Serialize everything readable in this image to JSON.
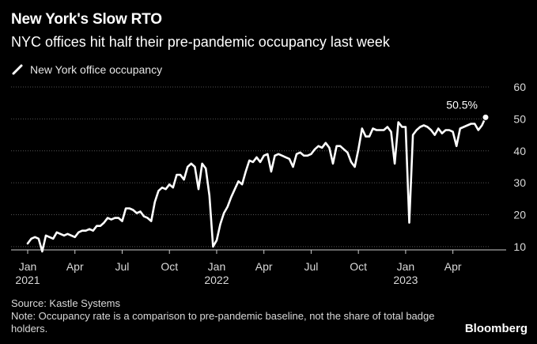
{
  "title": "New York's Slow RTO",
  "subtitle": "NYC offices hit half their pre-pandemic occupancy last week",
  "source": "Source: Kastle Systems",
  "note": "Note: Occupancy rate is a comparison to pre-pandemic baseline, not the share of total badge holders.",
  "brand": "Bloomberg",
  "colors": {
    "background": "#000000",
    "line": "#ffffff",
    "gridline": "#555555",
    "text": "#d9d9d9"
  },
  "chart_data": {
    "type": "line",
    "title": "New York's Slow RTO",
    "subtitle": "NYC offices hit half their pre-pandemic occupancy last week",
    "xlabel": "",
    "ylabel": "",
    "ylim": [
      8,
      61
    ],
    "yticks": [
      10,
      20,
      30,
      40,
      50,
      60
    ],
    "x_ticks": [
      {
        "date": "2021-01-04",
        "label": "Jan",
        "year": "2021"
      },
      {
        "date": "2021-04-05",
        "label": "Apr",
        "year": ""
      },
      {
        "date": "2021-07-05",
        "label": "Jul",
        "year": ""
      },
      {
        "date": "2021-10-04",
        "label": "Oct",
        "year": ""
      },
      {
        "date": "2022-01-03",
        "label": "Jan",
        "year": "2022"
      },
      {
        "date": "2022-04-04",
        "label": "Apr",
        "year": ""
      },
      {
        "date": "2022-07-04",
        "label": "Jul",
        "year": ""
      },
      {
        "date": "2022-10-03",
        "label": "Oct",
        "year": ""
      },
      {
        "date": "2023-01-02",
        "label": "Jan",
        "year": "2023"
      },
      {
        "date": "2023-04-03",
        "label": "Apr",
        "year": ""
      }
    ],
    "grid": true,
    "legend": "top-left",
    "annotation": {
      "date": "2023-06-05",
      "text": "50.5%"
    },
    "series": [
      {
        "name": "New York office occupancy",
        "points": [
          [
            "2021-01-04",
            11.0
          ],
          [
            "2021-01-11",
            12.5
          ],
          [
            "2021-01-18",
            13.0
          ],
          [
            "2021-01-25",
            12.5
          ],
          [
            "2021-02-01",
            8.5
          ],
          [
            "2021-02-08",
            13.5
          ],
          [
            "2021-02-15",
            13.0
          ],
          [
            "2021-02-22",
            12.5
          ],
          [
            "2021-03-01",
            14.5
          ],
          [
            "2021-03-08",
            14.0
          ],
          [
            "2021-03-15",
            13.5
          ],
          [
            "2021-03-22",
            14.0
          ],
          [
            "2021-03-29",
            13.5
          ],
          [
            "2021-04-05",
            13.0
          ],
          [
            "2021-04-12",
            14.5
          ],
          [
            "2021-04-19",
            15.0
          ],
          [
            "2021-04-26",
            15.0
          ],
          [
            "2021-05-03",
            15.5
          ],
          [
            "2021-05-10",
            15.0
          ],
          [
            "2021-05-17",
            16.5
          ],
          [
            "2021-05-24",
            16.5
          ],
          [
            "2021-05-31",
            17.5
          ],
          [
            "2021-06-07",
            19.0
          ],
          [
            "2021-06-14",
            18.5
          ],
          [
            "2021-06-21",
            19.0
          ],
          [
            "2021-06-28",
            19.0
          ],
          [
            "2021-07-05",
            18.0
          ],
          [
            "2021-07-12",
            22.0
          ],
          [
            "2021-07-19",
            22.0
          ],
          [
            "2021-07-26",
            21.5
          ],
          [
            "2021-08-02",
            20.5
          ],
          [
            "2021-08-09",
            21.0
          ],
          [
            "2021-08-16",
            19.5
          ],
          [
            "2021-08-23",
            19.0
          ],
          [
            "2021-08-30",
            18.0
          ],
          [
            "2021-09-06",
            24.0
          ],
          [
            "2021-09-13",
            27.5
          ],
          [
            "2021-09-20",
            28.5
          ],
          [
            "2021-09-27",
            28.0
          ],
          [
            "2021-10-04",
            29.5
          ],
          [
            "2021-10-11",
            28.5
          ],
          [
            "2021-10-18",
            32.5
          ],
          [
            "2021-10-25",
            32.5
          ],
          [
            "2021-11-01",
            31.0
          ],
          [
            "2021-11-08",
            35.0
          ],
          [
            "2021-11-15",
            36.0
          ],
          [
            "2021-11-22",
            35.0
          ],
          [
            "2021-11-29",
            28.0
          ],
          [
            "2021-12-06",
            36.0
          ],
          [
            "2021-12-13",
            34.5
          ],
          [
            "2021-12-20",
            26.0
          ],
          [
            "2021-12-27",
            10.0
          ],
          [
            "2022-01-03",
            12.0
          ],
          [
            "2022-01-10",
            17.0
          ],
          [
            "2022-01-17",
            20.5
          ],
          [
            "2022-01-24",
            22.5
          ],
          [
            "2022-01-31",
            25.5
          ],
          [
            "2022-02-07",
            28.0
          ],
          [
            "2022-02-14",
            30.5
          ],
          [
            "2022-02-21",
            29.5
          ],
          [
            "2022-02-28",
            33.5
          ],
          [
            "2022-03-07",
            37.0
          ],
          [
            "2022-03-14",
            36.5
          ],
          [
            "2022-03-21",
            38.0
          ],
          [
            "2022-03-28",
            36.5
          ],
          [
            "2022-04-04",
            38.5
          ],
          [
            "2022-04-11",
            39.0
          ],
          [
            "2022-04-18",
            33.5
          ],
          [
            "2022-04-25",
            38.5
          ],
          [
            "2022-05-02",
            39.0
          ],
          [
            "2022-05-09",
            38.5
          ],
          [
            "2022-05-16",
            38.0
          ],
          [
            "2022-05-23",
            37.5
          ],
          [
            "2022-05-30",
            35.0
          ],
          [
            "2022-06-06",
            39.0
          ],
          [
            "2022-06-13",
            39.5
          ],
          [
            "2022-06-20",
            38.5
          ],
          [
            "2022-06-27",
            38.5
          ],
          [
            "2022-07-04",
            39.0
          ],
          [
            "2022-07-11",
            40.5
          ],
          [
            "2022-07-18",
            41.5
          ],
          [
            "2022-07-25",
            41.0
          ],
          [
            "2022-08-01",
            42.5
          ],
          [
            "2022-08-08",
            41.0
          ],
          [
            "2022-08-15",
            36.0
          ],
          [
            "2022-08-22",
            41.5
          ],
          [
            "2022-08-29",
            41.5
          ],
          [
            "2022-09-05",
            40.5
          ],
          [
            "2022-09-12",
            39.5
          ],
          [
            "2022-09-19",
            36.5
          ],
          [
            "2022-09-26",
            35.0
          ],
          [
            "2022-10-03",
            40.5
          ],
          [
            "2022-10-10",
            47.0
          ],
          [
            "2022-10-17",
            44.5
          ],
          [
            "2022-10-24",
            44.5
          ],
          [
            "2022-10-31",
            47.0
          ],
          [
            "2022-11-07",
            46.5
          ],
          [
            "2022-11-14",
            46.5
          ],
          [
            "2022-11-21",
            46.5
          ],
          [
            "2022-11-28",
            47.5
          ],
          [
            "2022-12-05",
            46.0
          ],
          [
            "2022-12-12",
            36.0
          ],
          [
            "2022-12-19",
            49.0
          ],
          [
            "2022-12-26",
            47.5
          ],
          [
            "2023-01-02",
            47.5
          ],
          [
            "2023-01-09",
            17.5
          ],
          [
            "2023-01-16",
            45.0
          ],
          [
            "2023-01-23",
            46.5
          ],
          [
            "2023-01-30",
            47.5
          ],
          [
            "2023-02-06",
            48.0
          ],
          [
            "2023-02-13",
            47.5
          ],
          [
            "2023-02-20",
            46.5
          ],
          [
            "2023-02-27",
            45.0
          ],
          [
            "2023-03-06",
            47.0
          ],
          [
            "2023-03-13",
            45.5
          ],
          [
            "2023-03-20",
            46.5
          ],
          [
            "2023-03-27",
            46.5
          ],
          [
            "2023-04-03",
            46.0
          ],
          [
            "2023-04-10",
            41.5
          ],
          [
            "2023-04-17",
            47.0
          ],
          [
            "2023-04-24",
            47.5
          ],
          [
            "2023-05-01",
            48.0
          ],
          [
            "2023-05-08",
            48.5
          ],
          [
            "2023-05-15",
            48.5
          ],
          [
            "2023-05-22",
            46.5
          ],
          [
            "2023-05-29",
            48.0
          ],
          [
            "2023-06-05",
            50.5
          ]
        ]
      }
    ]
  }
}
